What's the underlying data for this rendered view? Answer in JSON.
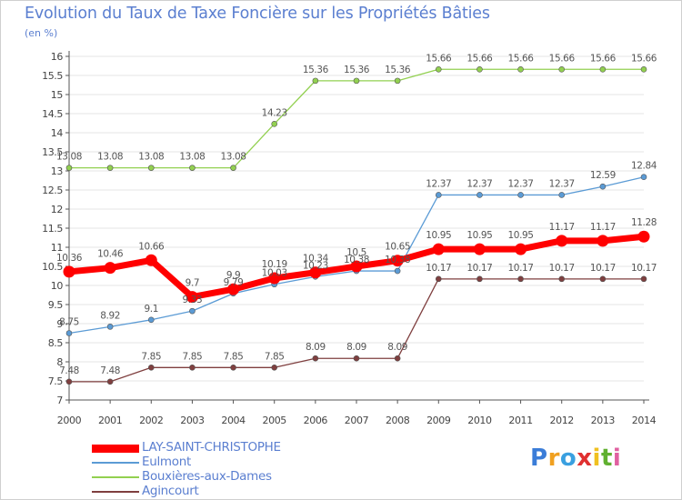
{
  "title": "Evolution du Taux de Taxe Foncière sur les Propriétés Bâties",
  "subtitle": "(en %)",
  "brand": "Proxiti",
  "chart_data": {
    "type": "line",
    "x": [
      "2000",
      "2001",
      "2002",
      "2003",
      "2004",
      "2005",
      "2006",
      "2007",
      "2008",
      "2009",
      "2010",
      "2011",
      "2012",
      "2013",
      "2014"
    ],
    "ylim": [
      7,
      16
    ],
    "yticks": [
      "7",
      "7.5",
      "8",
      "8.5",
      "9",
      "9.5",
      "10",
      "10.5",
      "11",
      "11.5",
      "12",
      "12.5",
      "13",
      "13.5",
      "14",
      "14.5",
      "15",
      "15.5",
      "16"
    ],
    "grid": "horizontal",
    "legend_position": "bottom-left",
    "series": [
      {
        "name": "LAY-SAINT-CHRISTOPHE",
        "color": "#ff0000",
        "values": [
          10.36,
          10.46,
          10.66,
          9.7,
          9.9,
          10.19,
          10.34,
          10.5,
          10.65,
          10.95,
          10.95,
          10.95,
          11.17,
          11.17,
          11.28
        ],
        "labels": [
          "10.36",
          "10.46",
          "10.66",
          "9.7",
          "9.9",
          "10.19",
          "10.34",
          "10.5",
          "10.65",
          "10.95",
          "10.95",
          "10.95",
          "11.17",
          "11.17",
          "11.28"
        ]
      },
      {
        "name": "Eulmont",
        "color": "#5b9bd5",
        "values": [
          8.75,
          8.92,
          9.1,
          9.33,
          9.79,
          10.03,
          10.23,
          10.38,
          10.38,
          12.37,
          12.37,
          12.37,
          12.37,
          12.59,
          12.84
        ],
        "labels": [
          "8.75",
          "8.92",
          "9.1",
          "9.33",
          "9.79",
          "10.03",
          "10.23",
          "10.38",
          "10.38",
          "12.37",
          "12.37",
          "12.37",
          "12.37",
          "12.59",
          "12.84"
        ]
      },
      {
        "name": "Bouxières-aux-Dames",
        "color": "#92d050",
        "values": [
          13.08,
          13.08,
          13.08,
          13.08,
          13.08,
          14.23,
          15.36,
          15.36,
          15.36,
          15.66,
          15.66,
          15.66,
          15.66,
          15.66,
          15.66
        ],
        "labels": [
          "13.08",
          "13.08",
          "13.08",
          "13.08",
          "13.08",
          "14.23",
          "15.36",
          "15.36",
          "15.36",
          "15.66",
          "15.66",
          "15.66",
          "15.66",
          "15.66",
          "15.66"
        ]
      },
      {
        "name": "Agincourt",
        "color": "#7f3f3f",
        "values": [
          7.48,
          7.48,
          7.85,
          7.85,
          7.85,
          7.85,
          8.09,
          8.09,
          8.09,
          10.17,
          10.17,
          10.17,
          10.17,
          10.17,
          10.17
        ],
        "labels": [
          "7.48",
          "7.48",
          "7.85",
          "7.85",
          "7.85",
          "7.85",
          "8.09",
          "8.09",
          "8.09",
          "10.17",
          "10.17",
          "10.17",
          "10.17",
          "10.17",
          "10.17"
        ]
      }
    ]
  }
}
